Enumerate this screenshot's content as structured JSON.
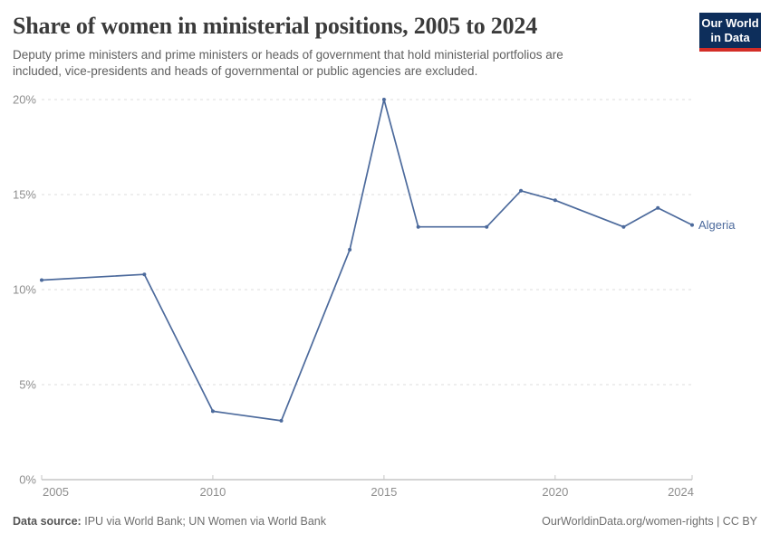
{
  "header": {
    "title": "Share of women in ministerial positions, 2005 to 2024",
    "subtitle_line1": "Deputy prime ministers and prime ministers or heads of government that hold ministerial portfolios are",
    "subtitle_line2": "included, vice-presidents and heads of governmental or public agencies are excluded.",
    "logo": {
      "line1": "Our World",
      "line2": "in Data"
    }
  },
  "chart_data": {
    "type": "line",
    "title": "Share of women in ministerial positions, 2005 to 2024",
    "unit": "%",
    "x": [
      2005,
      2008,
      2010,
      2012,
      2014,
      2015,
      2016,
      2018,
      2019,
      2020,
      2022,
      2023,
      2024
    ],
    "series": [
      {
        "name": "Algeria",
        "color": "#4c6a9c",
        "values": [
          10.5,
          10.8,
          3.6,
          3.1,
          12.1,
          20.0,
          13.3,
          13.3,
          15.2,
          14.7,
          13.3,
          14.3,
          13.4
        ]
      }
    ],
    "xlim": [
      2005,
      2024
    ],
    "ylim": [
      0,
      20
    ],
    "yticks": [
      0,
      5,
      10,
      15,
      20
    ],
    "ytick_labels": [
      "0%",
      "5%",
      "10%",
      "15%",
      "20%"
    ],
    "xticks": [
      2005,
      2010,
      2015,
      2020,
      2024
    ],
    "xtick_labels": [
      "2005",
      "2010",
      "2015",
      "2020",
      "2024"
    ],
    "grid": "horizontal dashed gridlines, solid baseline at 0%",
    "legend": "label at end of line"
  },
  "footer": {
    "source_label": "Data source:",
    "source_text": "IPU via World Bank; UN Women via World Bank",
    "link_text": "OurWorldinData.org/women-rights | CC BY"
  },
  "colors": {
    "line": "#4c6a9c",
    "grid": "#dcdcdc",
    "axis": "#a8a8a8",
    "tick_mark": "#c6c6c6",
    "tick_text": "#8e8e8e",
    "title_text": "#3b3b3b",
    "subtitle_text": "#606060",
    "footer_text": "#6e6e6e",
    "logo_bg": "#0d2e5b",
    "logo_bar": "#d32d27"
  }
}
